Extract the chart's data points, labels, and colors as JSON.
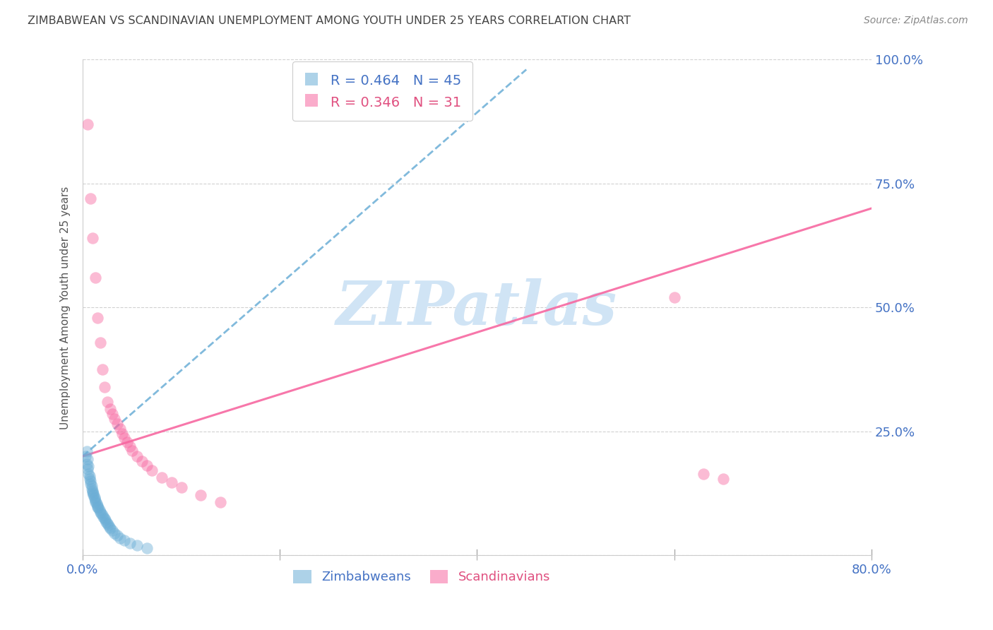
{
  "title": "ZIMBABWEAN VS SCANDINAVIAN UNEMPLOYMENT AMONG YOUTH UNDER 25 YEARS CORRELATION CHART",
  "source": "Source: ZipAtlas.com",
  "ylabel": "Unemployment Among Youth under 25 years",
  "xlim": [
    0.0,
    0.8
  ],
  "ylim": [
    0.0,
    1.0
  ],
  "xticks": [
    0.0,
    0.2,
    0.4,
    0.6,
    0.8
  ],
  "xticklabels": [
    "0.0%",
    "",
    "",
    "",
    "80.0%"
  ],
  "yticks": [
    0.0,
    0.25,
    0.5,
    0.75,
    1.0
  ],
  "yticklabels": [
    "",
    "25.0%",
    "50.0%",
    "75.0%",
    "100.0%"
  ],
  "r_zimbabwean": 0.464,
  "n_zimbabwean": 45,
  "r_scandinavian": 0.346,
  "n_scandinavian": 31,
  "blue_color": "#6baed6",
  "pink_color": "#f768a1",
  "axis_tick_color": "#4472C4",
  "title_color": "#444444",
  "source_color": "#888888",
  "watermark": "ZIPatlas",
  "watermark_color": "#d0e4f5",
  "zim_x": [
    0.003,
    0.004,
    0.004,
    0.005,
    0.005,
    0.006,
    0.006,
    0.007,
    0.007,
    0.008,
    0.008,
    0.009,
    0.009,
    0.01,
    0.01,
    0.011,
    0.011,
    0.012,
    0.012,
    0.013,
    0.013,
    0.014,
    0.015,
    0.015,
    0.016,
    0.017,
    0.018,
    0.019,
    0.02,
    0.021,
    0.022,
    0.023,
    0.024,
    0.025,
    0.026,
    0.027,
    0.028,
    0.03,
    0.032,
    0.035,
    0.038,
    0.042,
    0.048,
    0.055,
    0.065
  ],
  "zim_y": [
    0.2,
    0.21,
    0.185,
    0.175,
    0.195,
    0.165,
    0.18,
    0.16,
    0.155,
    0.15,
    0.145,
    0.14,
    0.135,
    0.13,
    0.128,
    0.125,
    0.122,
    0.118,
    0.114,
    0.11,
    0.108,
    0.105,
    0.1,
    0.098,
    0.096,
    0.092,
    0.088,
    0.085,
    0.082,
    0.078,
    0.075,
    0.072,
    0.068,
    0.065,
    0.062,
    0.058,
    0.055,
    0.05,
    0.045,
    0.04,
    0.035,
    0.03,
    0.025,
    0.02,
    0.015
  ],
  "scan_x": [
    0.005,
    0.008,
    0.01,
    0.013,
    0.015,
    0.018,
    0.02,
    0.022,
    0.025,
    0.028,
    0.03,
    0.032,
    0.035,
    0.038,
    0.04,
    0.042,
    0.045,
    0.048,
    0.05,
    0.055,
    0.06,
    0.065,
    0.07,
    0.08,
    0.09,
    0.1,
    0.12,
    0.14,
    0.6,
    0.63,
    0.65
  ],
  "scan_y": [
    0.87,
    0.72,
    0.64,
    0.56,
    0.48,
    0.43,
    0.375,
    0.34,
    0.31,
    0.295,
    0.285,
    0.275,
    0.265,
    0.255,
    0.245,
    0.237,
    0.228,
    0.22,
    0.212,
    0.2,
    0.19,
    0.182,
    0.172,
    0.158,
    0.148,
    0.138,
    0.122,
    0.108,
    0.52,
    0.165,
    0.155
  ],
  "blue_line_x": [
    0.0,
    0.45
  ],
  "blue_line_y": [
    0.2,
    0.98
  ],
  "pink_line_x": [
    0.0,
    0.8
  ],
  "pink_line_y": [
    0.2,
    0.7
  ]
}
